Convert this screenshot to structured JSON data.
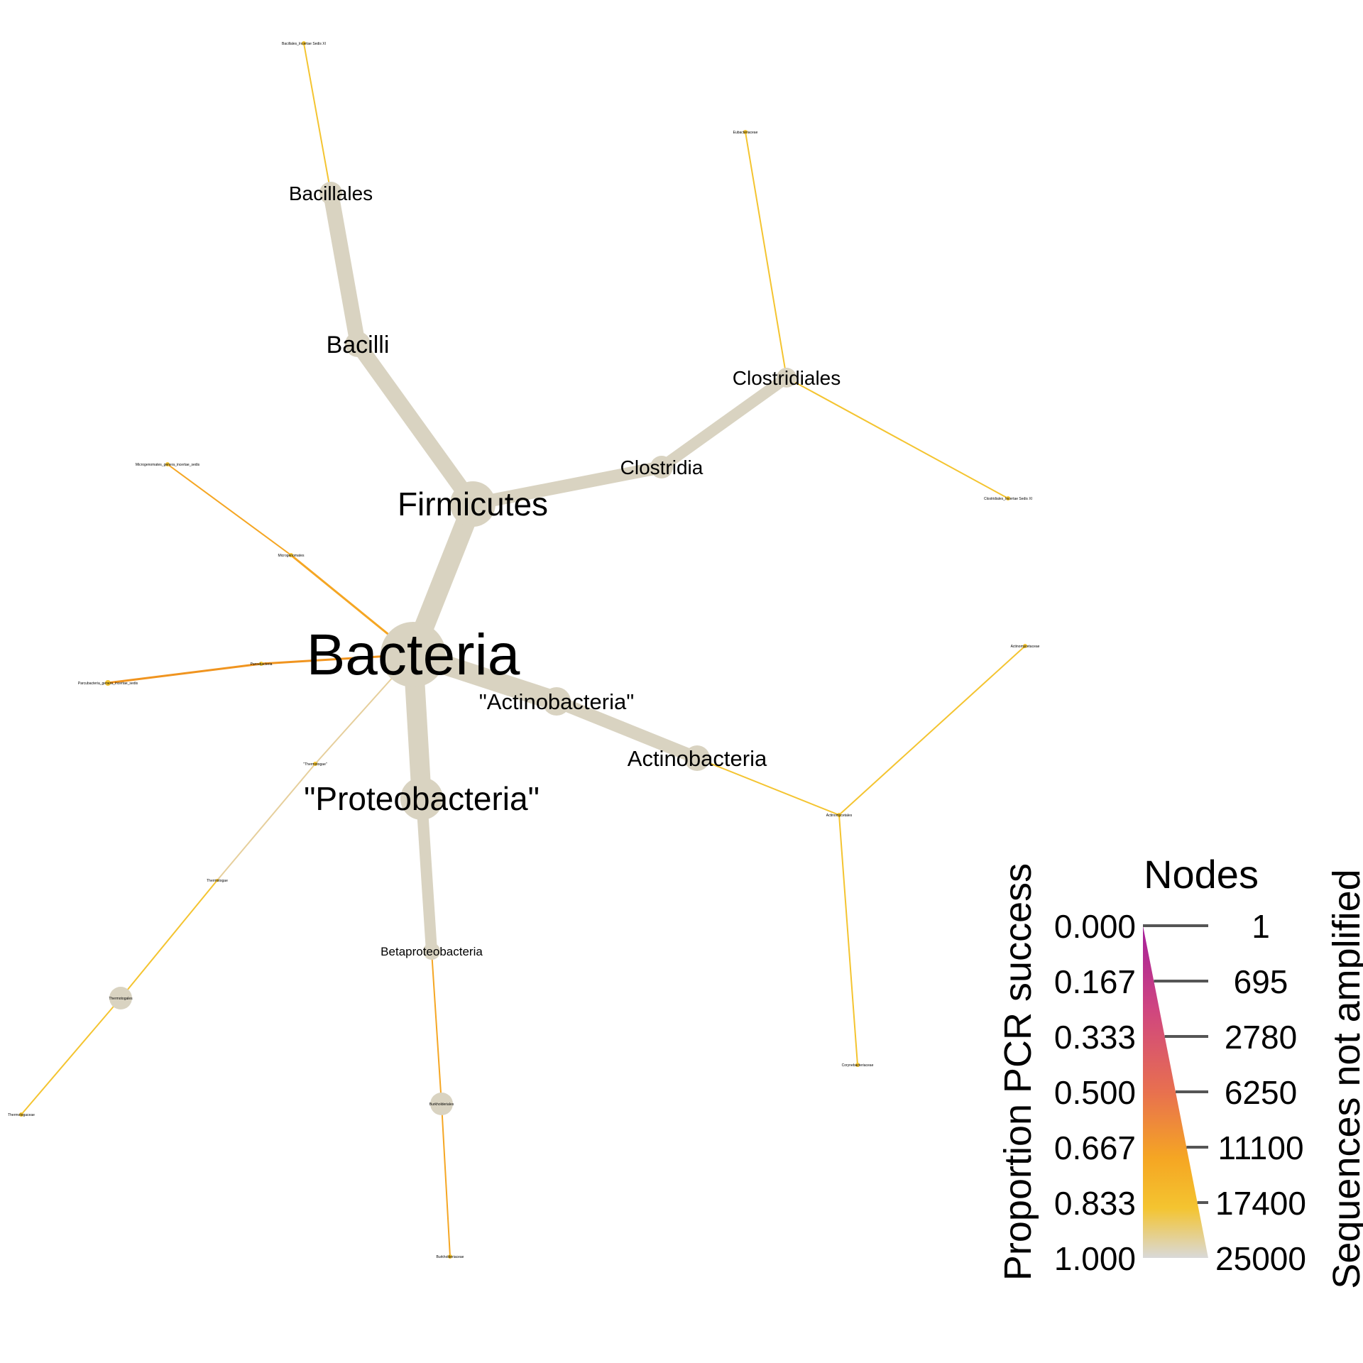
{
  "diagram": {
    "type": "heat_tree",
    "colors": {
      "background": "#ffffff",
      "node_fill": "#d9d3c1",
      "edge_dark_orange": "#f0941f",
      "edge_orange": "#f5a623",
      "edge_yellow": "#f4c430",
      "edge_pale": "#e6cf9c",
      "label": "#000000"
    },
    "nodes": [
      {
        "id": "bacteria",
        "label": "Bacteria",
        "level": 1
      },
      {
        "id": "firmicutes",
        "label": "Firmicutes",
        "level": 2
      },
      {
        "id": "bacilli",
        "label": "Bacilli",
        "level": 3
      },
      {
        "id": "bacillales",
        "label": "Bacillales",
        "level": 4
      },
      {
        "id": "bacillales_ivs",
        "label": "Bacillales_Incertae Sedis XI",
        "level": 5
      },
      {
        "id": "clostridia",
        "label": "Clostridia",
        "level": 3
      },
      {
        "id": "clostridiales",
        "label": "Clostridiales",
        "level": 4
      },
      {
        "id": "eubacteriaceae",
        "label": "Eubacteriaceae",
        "level": 5
      },
      {
        "id": "clostridiales_ivs",
        "label": "Clostridiales_Incertae Sedis XI",
        "level": 5
      },
      {
        "id": "actino_phylum",
        "label": "\"Actinobacteria\"",
        "level": 2
      },
      {
        "id": "actino_class",
        "label": "Actinobacteria",
        "level": 3
      },
      {
        "id": "actinomycetales",
        "label": "Actinomycetales",
        "level": 4
      },
      {
        "id": "actinomycetaceae",
        "label": "Actinomycetaceae",
        "level": 5
      },
      {
        "id": "corynebacteriaceae",
        "label": "Corynebacteriaceae",
        "level": 5
      },
      {
        "id": "proteobacteria",
        "label": "\"Proteobacteria\"",
        "level": 2
      },
      {
        "id": "betaproteobacteria",
        "label": "Betaproteobacteria",
        "level": 3
      },
      {
        "id": "burkholderiales",
        "label": "Burkholderiales",
        "level": 4
      },
      {
        "id": "burkholderiaceae",
        "label": "Burkholderiaceae",
        "level": 5
      },
      {
        "id": "parcubacteria",
        "label": "Parcubacteria",
        "level": 2
      },
      {
        "id": "parcubacteria_ivs",
        "label": "Parcubacteria_genera_incertae_sedis",
        "level": 3
      },
      {
        "id": "microgenomates",
        "label": "Microgenomates",
        "level": 2
      },
      {
        "id": "microgenomates_ivs",
        "label": "Microgenomates_genera_incertae_sedis",
        "level": 3
      },
      {
        "id": "thermotogae_phylum",
        "label": "\"Thermotogae\"",
        "level": 2
      },
      {
        "id": "thermotogae_class",
        "label": "Thermotogae",
        "level": 3
      },
      {
        "id": "thermotogales",
        "label": "Thermotogales",
        "level": 4
      },
      {
        "id": "thermotogaceae",
        "label": "Thermotogaceae",
        "level": 5
      }
    ],
    "edges": [
      {
        "from": "bacteria",
        "to": "firmicutes",
        "tone": "node_fill"
      },
      {
        "from": "firmicutes",
        "to": "bacilli",
        "tone": "node_fill"
      },
      {
        "from": "bacilli",
        "to": "bacillales",
        "tone": "node_fill"
      },
      {
        "from": "bacillales",
        "to": "bacillales_ivs",
        "tone": "edge_yellow"
      },
      {
        "from": "firmicutes",
        "to": "clostridia",
        "tone": "node_fill"
      },
      {
        "from": "clostridia",
        "to": "clostridiales",
        "tone": "node_fill"
      },
      {
        "from": "clostridiales",
        "to": "eubacteriaceae",
        "tone": "edge_yellow"
      },
      {
        "from": "clostridiales",
        "to": "clostridiales_ivs",
        "tone": "edge_yellow"
      },
      {
        "from": "bacteria",
        "to": "actino_phylum",
        "tone": "node_fill"
      },
      {
        "from": "actino_phylum",
        "to": "actino_class",
        "tone": "node_fill"
      },
      {
        "from": "actino_class",
        "to": "actinomycetales",
        "tone": "edge_yellow"
      },
      {
        "from": "actinomycetales",
        "to": "actinomycetaceae",
        "tone": "edge_yellow"
      },
      {
        "from": "actinomycetales",
        "to": "corynebacteriaceae",
        "tone": "edge_yellow"
      },
      {
        "from": "bacteria",
        "to": "proteobacteria",
        "tone": "node_fill"
      },
      {
        "from": "proteobacteria",
        "to": "betaproteobacteria",
        "tone": "node_fill"
      },
      {
        "from": "betaproteobacteria",
        "to": "burkholderiales",
        "tone": "edge_orange"
      },
      {
        "from": "burkholderiales",
        "to": "burkholderiaceae",
        "tone": "edge_orange"
      },
      {
        "from": "bacteria",
        "to": "parcubacteria",
        "tone": "edge_dark_orange"
      },
      {
        "from": "parcubacteria",
        "to": "parcubacteria_ivs",
        "tone": "edge_dark_orange"
      },
      {
        "from": "bacteria",
        "to": "microgenomates",
        "tone": "edge_orange"
      },
      {
        "from": "microgenomates",
        "to": "microgenomates_ivs",
        "tone": "edge_orange"
      },
      {
        "from": "bacteria",
        "to": "thermotogae_phylum",
        "tone": "edge_pale"
      },
      {
        "from": "thermotogae_phylum",
        "to": "thermotogae_class",
        "tone": "edge_pale"
      },
      {
        "from": "thermotogae_class",
        "to": "thermotogales",
        "tone": "edge_yellow"
      },
      {
        "from": "thermotogales",
        "to": "thermotogaceae",
        "tone": "edge_yellow"
      }
    ]
  },
  "legend": {
    "title": "Nodes",
    "color_axis_label": "Proportion PCR success",
    "size_axis_label": "Sequences not amplified",
    "color_ticks": [
      "0.000",
      "0.167",
      "0.333",
      "0.500",
      "0.667",
      "0.833",
      "1.000"
    ],
    "size_ticks": [
      "1",
      "695",
      "2780",
      "6250",
      "11100",
      "17400",
      "25000"
    ],
    "gradient_colors": [
      "#a51f9b",
      "#cf4580",
      "#e8704f",
      "#f5a623",
      "#f4c430",
      "#d9d9d9"
    ]
  }
}
